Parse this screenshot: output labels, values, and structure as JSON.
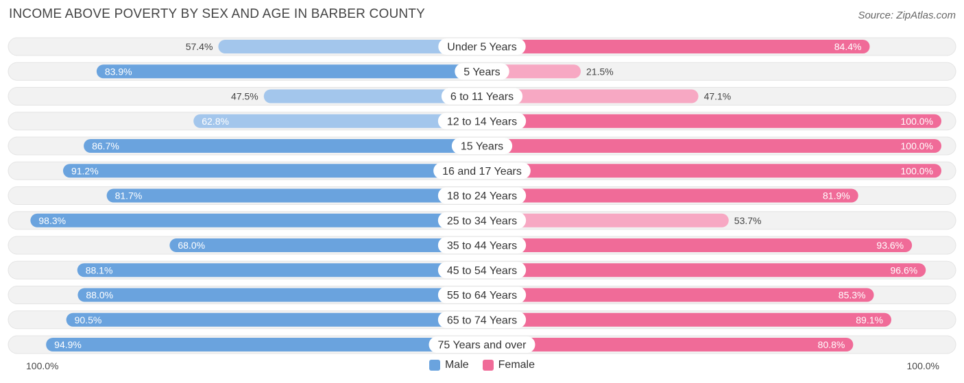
{
  "header": {
    "title": "INCOME ABOVE POVERTY BY SEX AND AGE IN BARBER COUNTY",
    "source": "Source: ZipAtlas.com"
  },
  "axis": {
    "left_label": "100.0%",
    "right_label": "100.0%"
  },
  "legend": {
    "male": "Male",
    "female": "Female"
  },
  "colors": {
    "male_light": "#a3c6ec",
    "male_dark": "#6aa3de",
    "female_light": "#f7a8c3",
    "female_dark": "#f06b98",
    "track": "#eeeeee"
  },
  "chart_data": {
    "type": "bar",
    "title": "INCOME ABOVE POVERTY BY SEX AND AGE IN BARBER COUNTY",
    "orientation": "diverging-horizontal",
    "xlim": [
      0,
      100
    ],
    "unit": "%",
    "categories": [
      "Under 5 Years",
      "5 Years",
      "6 to 11 Years",
      "12 to 14 Years",
      "15 Years",
      "16 and 17 Years",
      "18 to 24 Years",
      "25 to 34 Years",
      "35 to 44 Years",
      "45 to 54 Years",
      "55 to 64 Years",
      "65 to 74 Years",
      "75 Years and over"
    ],
    "series": [
      {
        "name": "Male",
        "values": [
          57.4,
          83.9,
          47.5,
          62.8,
          86.7,
          91.2,
          81.7,
          98.3,
          68.0,
          88.1,
          88.0,
          90.5,
          94.9
        ],
        "labels": [
          "57.4%",
          "83.9%",
          "47.5%",
          "62.8%",
          "86.7%",
          "91.2%",
          "81.7%",
          "98.3%",
          "68.0%",
          "88.1%",
          "88.0%",
          "90.5%",
          "94.9%"
        ]
      },
      {
        "name": "Female",
        "values": [
          84.4,
          21.5,
          47.1,
          100.0,
          100.0,
          100.0,
          81.9,
          53.7,
          93.6,
          96.6,
          85.3,
          89.1,
          80.8
        ],
        "labels": [
          "84.4%",
          "21.5%",
          "47.1%",
          "100.0%",
          "100.0%",
          "100.0%",
          "81.9%",
          "53.7%",
          "93.6%",
          "96.6%",
          "85.3%",
          "89.1%",
          "80.8%"
        ]
      }
    ],
    "legend_position": "bottom-center"
  }
}
